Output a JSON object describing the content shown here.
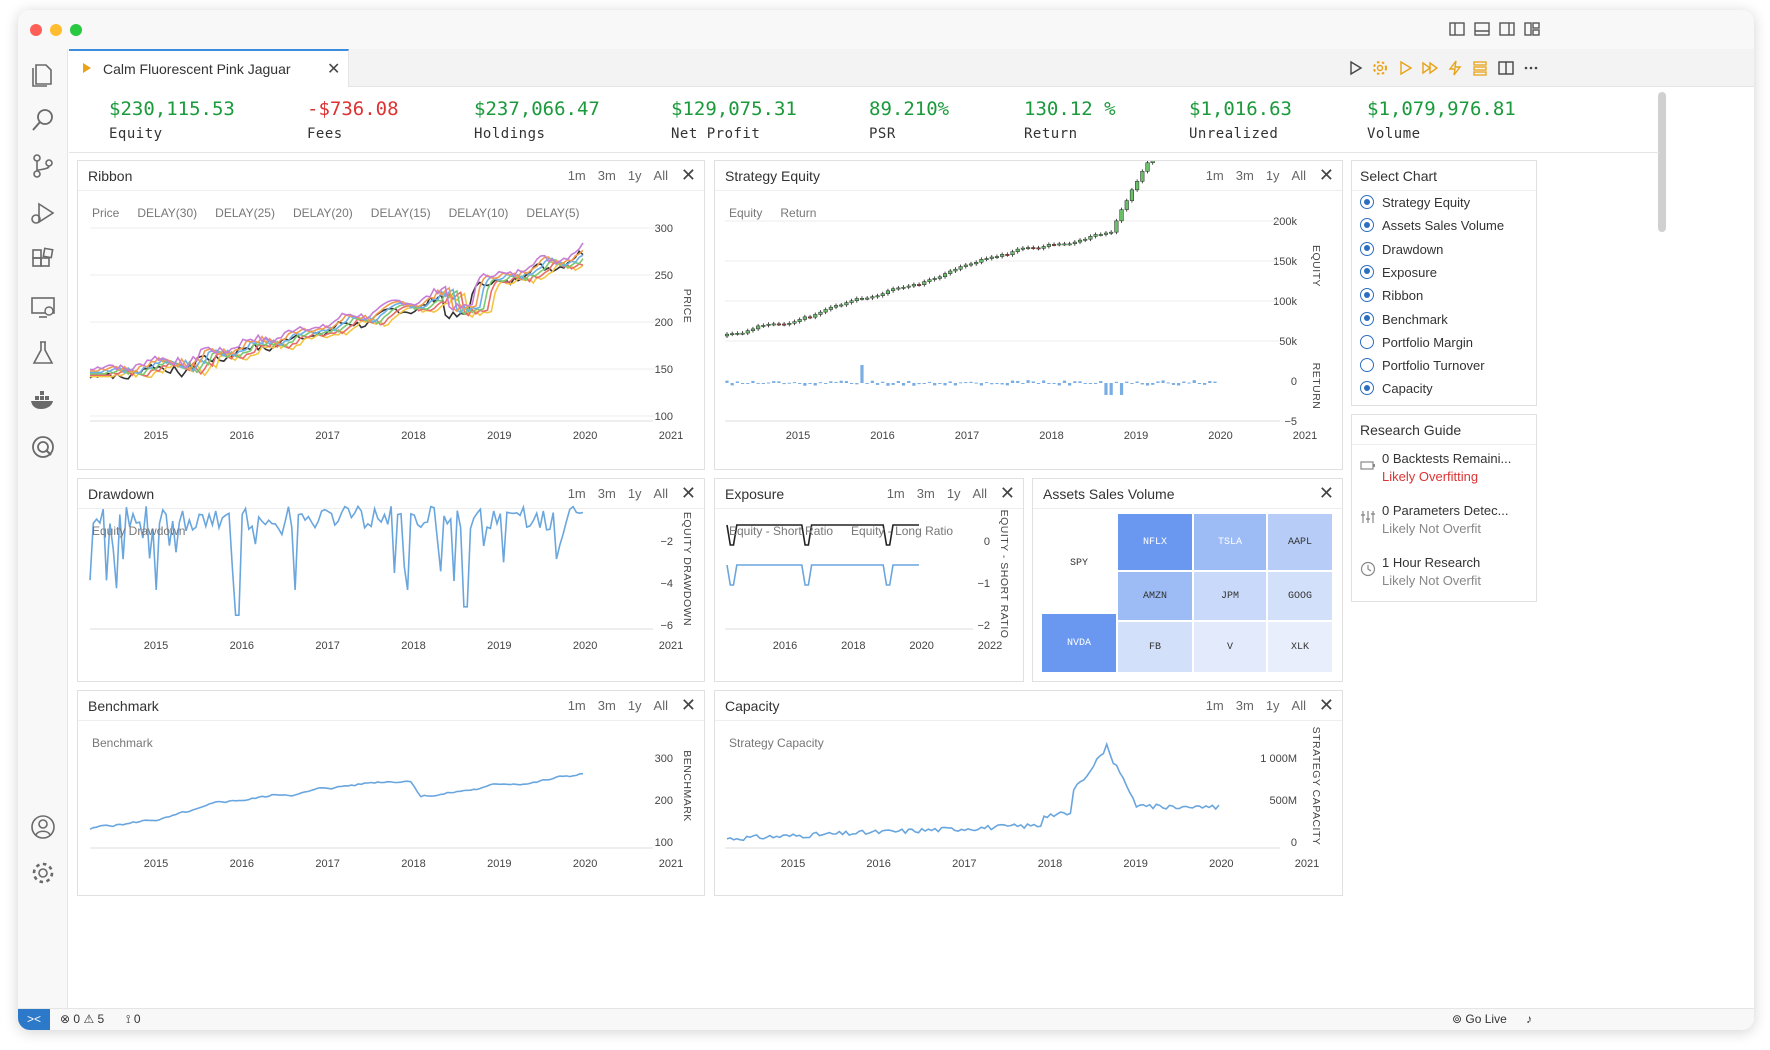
{
  "tab": {
    "title": "Calm Fluorescent Pink Jaguar",
    "close": "✕"
  },
  "metrics": [
    {
      "value": "$230,115.53",
      "label": "Equity",
      "color": "#1a9a3b"
    },
    {
      "value": "-$736.08",
      "label": "Fees",
      "color": "#d33"
    },
    {
      "value": "$237,066.47",
      "label": "Holdings",
      "color": "#1a9a3b"
    },
    {
      "value": "$129,075.31",
      "label": "Net Profit",
      "color": "#1a9a3b"
    },
    {
      "value": "89.210%",
      "label": "PSR",
      "color": "#1a9a3b"
    },
    {
      "value": "130.12 %",
      "label": "Return",
      "color": "#1a9a3b"
    },
    {
      "value": "$1,016.63",
      "label": "Unrealized",
      "color": "#1a9a3b"
    },
    {
      "value": "$1,079,976.81",
      "label": "Volume",
      "color": "#1a9a3b"
    }
  ],
  "range_buttons": [
    "1m",
    "3m",
    "1y",
    "All"
  ],
  "close_glyph": "✕",
  "panels": {
    "ribbon": {
      "title": "Ribbon",
      "legend": [
        "Price",
        "DELAY(30)",
        "DELAY(25)",
        "DELAY(20)",
        "DELAY(15)",
        "DELAY(10)",
        "DELAY(5)"
      ],
      "ylabel": "PRICE",
      "yticks": [
        "300",
        "250",
        "200",
        "150",
        "100"
      ],
      "xticks": [
        "2015",
        "2016",
        "2017",
        "2018",
        "2019",
        "2020",
        "2021"
      ]
    },
    "strategy_equity": {
      "title": "Strategy Equity",
      "legend": [
        "Equity",
        "Return"
      ],
      "ylabel": "EQUITY",
      "ylabel2": "RETURN",
      "yticks": [
        "200k",
        "150k",
        "100k",
        "50k"
      ],
      "yticks2": [
        "0",
        "−5"
      ],
      "xticks": [
        "2015",
        "2016",
        "2017",
        "2018",
        "2019",
        "2020",
        "2021"
      ]
    },
    "drawdown": {
      "title": "Drawdown",
      "legend": [
        "Equity Drawdown"
      ],
      "ylabel": "EQUITY DRAWDOWN",
      "yticks": [
        "−2",
        "−4",
        "−6"
      ],
      "xticks": [
        "2015",
        "2016",
        "2017",
        "2018",
        "2019",
        "2020",
        "2021"
      ]
    },
    "exposure": {
      "title": "Exposure",
      "legend": [
        "Equity - Short Ratio",
        "Equity - Long Ratio"
      ],
      "ylabel": "EQUITY - SHORT RATIO",
      "yticks": [
        "0",
        "−1",
        "−2"
      ],
      "xticks": [
        "2016",
        "2018",
        "2020",
        "2022"
      ]
    },
    "assets_sales_volume": {
      "title": "Assets Sales Volume",
      "cells": [
        "SPY",
        "NFLX",
        "TSLA",
        "AAPL",
        "AMZN",
        "JPM",
        "GOOG",
        "NVDA",
        "FB",
        "V",
        "XLK"
      ]
    },
    "benchmark": {
      "title": "Benchmark",
      "legend": [
        "Benchmark"
      ],
      "ylabel": "BENCHMARK",
      "yticks": [
        "300",
        "200",
        "100"
      ],
      "xticks": [
        "2015",
        "2016",
        "2017",
        "2018",
        "2019",
        "2020",
        "2021"
      ]
    },
    "capacity": {
      "title": "Capacity",
      "legend": [
        "Strategy Capacity"
      ],
      "ylabel": "STRATEGY CAPACITY",
      "yticks": [
        "1 000M",
        "500M",
        "0"
      ],
      "xticks": [
        "2015",
        "2016",
        "2017",
        "2018",
        "2019",
        "2020",
        "2021"
      ]
    }
  },
  "select_chart": {
    "title": "Select Chart",
    "items": [
      {
        "label": "Strategy Equity",
        "checked": true
      },
      {
        "label": "Assets Sales Volume",
        "checked": true
      },
      {
        "label": "Drawdown",
        "checked": true
      },
      {
        "label": "Exposure",
        "checked": true
      },
      {
        "label": "Ribbon",
        "checked": true
      },
      {
        "label": "Benchmark",
        "checked": true
      },
      {
        "label": "Portfolio Margin",
        "checked": false
      },
      {
        "label": "Portfolio Turnover",
        "checked": false
      },
      {
        "label": "Capacity",
        "checked": true
      }
    ]
  },
  "research_guide": {
    "title": "Research Guide",
    "items": [
      {
        "title": "0 Backtests Remaini...",
        "status": "Likely Overfitting",
        "icon": "battery-icon"
      },
      {
        "title": "0 Parameters Detec...",
        "status": "Likely Not Overfit",
        "icon": "sliders-icon"
      },
      {
        "title": "1 Hour Research",
        "status": "Likely Not Overfit",
        "icon": "clock-icon"
      }
    ]
  },
  "statusbar": {
    "errors": "0",
    "warnings": "5",
    "ports": "0",
    "golive": "Go Live"
  }
}
